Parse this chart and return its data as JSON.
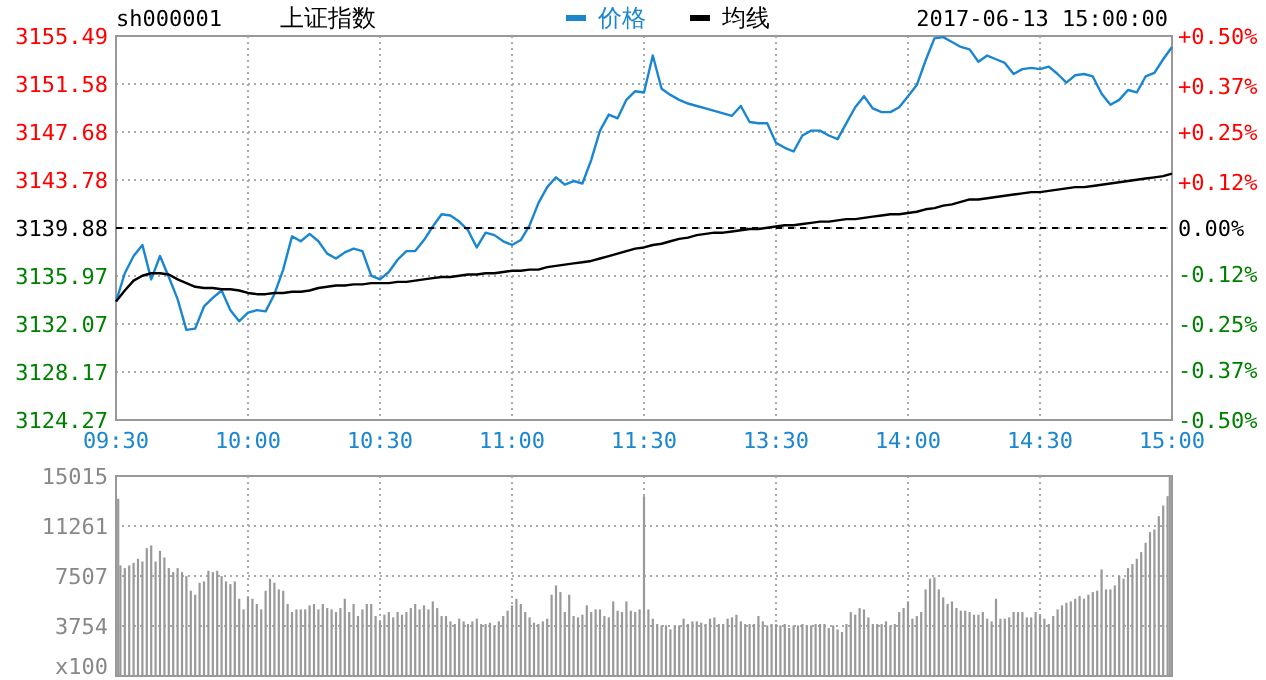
{
  "chart_data": [
    {
      "type": "line",
      "title": "上证指数",
      "subtitle": "sh000001",
      "annotations": [
        "2017-06-13 15:00:00"
      ],
      "legend": "top",
      "grid": true,
      "categories": [
        "09:30",
        null,
        null,
        null,
        null,
        null,
        null,
        null,
        null,
        null,
        null,
        null,
        null,
        null,
        null,
        "10:00",
        null,
        null,
        null,
        null,
        null,
        null,
        null,
        null,
        null,
        null,
        null,
        null,
        null,
        null,
        "10:30",
        null,
        null,
        null,
        null,
        null,
        null,
        null,
        null,
        null,
        null,
        null,
        null,
        null,
        null,
        "11:00",
        null,
        null,
        null,
        null,
        null,
        null,
        null,
        null,
        null,
        null,
        null,
        null,
        null,
        null,
        "11:30",
        null,
        null,
        null,
        null,
        null,
        null,
        null,
        null,
        null,
        null,
        null,
        null,
        null,
        null,
        "13:30",
        null,
        null,
        null,
        null,
        null,
        null,
        null,
        null,
        null,
        null,
        null,
        null,
        null,
        null,
        "14:00",
        null,
        null,
        null,
        null,
        null,
        null,
        null,
        null,
        null,
        null,
        null,
        null,
        null,
        null,
        "14:30",
        null,
        null,
        null,
        null,
        null,
        null,
        null,
        null,
        null,
        null,
        null,
        null,
        null,
        null,
        "15:00"
      ],
      "ylim": [
        3124.27,
        3155.49
      ],
      "yticks": [
        3124.27,
        3128.17,
        3132.07,
        3135.97,
        3139.88,
        3143.78,
        3147.68,
        3151.58,
        3155.49
      ],
      "y2lim": [
        -0.5,
        0.5
      ],
      "y2ticks": [
        {
          "value": -0.5,
          "label": "-0.50%"
        },
        {
          "value": -0.37,
          "label": "-0.37%"
        },
        {
          "value": -0.25,
          "label": "-0.25%"
        },
        {
          "value": -0.12,
          "label": "-0.12%"
        },
        {
          "value": 0,
          "label": "0.00%"
        },
        {
          "value": 0.12,
          "label": "+0.12%"
        },
        {
          "value": 0.25,
          "label": "+0.25%"
        },
        {
          "value": 0.37,
          "label": "+0.37%"
        },
        {
          "value": 0.5,
          "label": "+0.50%"
        }
      ],
      "ref_lines": [
        {
          "axis": "y",
          "value": 3139.88,
          "color": "#000000",
          "line_style": "dashed"
        }
      ],
      "series": [
        {
          "name": "价格",
          "color": "#1a86d0",
          "values": [
            3133.9,
            3136.2,
            3137.6,
            3138.5,
            3135.7,
            3137.6,
            3135.9,
            3134.1,
            3131.6,
            3131.7,
            3133.5,
            3134.2,
            3134.8,
            3133.2,
            3132.3,
            3133.0,
            3133.2,
            3133.1,
            3134.5,
            3136.5,
            3139.2,
            3138.8,
            3139.4,
            3138.8,
            3137.8,
            3137.4,
            3137.9,
            3138.2,
            3138.0,
            3136.0,
            3135.7,
            3136.3,
            3137.3,
            3138.0,
            3138.0,
            3138.9,
            3140.0,
            3141.0,
            3140.9,
            3140.4,
            3139.7,
            3138.3,
            3139.5,
            3139.3,
            3138.8,
            3138.5,
            3138.9,
            3140.1,
            3141.9,
            3143.2,
            3144.0,
            3143.4,
            3143.7,
            3143.5,
            3145.4,
            3147.8,
            3149.1,
            3148.8,
            3150.3,
            3151.0,
            3150.9,
            3153.9,
            3151.2,
            3150.7,
            3150.3,
            3150.0,
            3149.8,
            3149.6,
            3149.4,
            3149.2,
            3149.0,
            3149.8,
            3148.5,
            3148.4,
            3148.4,
            3146.8,
            3146.4,
            3146.1,
            3147.4,
            3147.8,
            3147.8,
            3147.4,
            3147.1,
            3148.4,
            3149.7,
            3150.6,
            3149.6,
            3149.3,
            3149.3,
            3149.7,
            3150.6,
            3151.5,
            3153.5,
            3155.3,
            3155.4,
            3155.0,
            3154.6,
            3154.4,
            3153.4,
            3153.9,
            3153.6,
            3153.3,
            3152.4,
            3152.8,
            3152.9,
            3152.8,
            3153.0,
            3152.4,
            3151.7,
            3152.3,
            3152.4,
            3152.2,
            3150.8,
            3149.9,
            3150.3,
            3151.1,
            3150.9,
            3152.2,
            3152.5,
            3153.6,
            3154.6
          ]
        },
        {
          "name": "均线",
          "color": "#000000",
          "values": [
            3133.9,
            3134.8,
            3135.6,
            3136.0,
            3136.2,
            3136.2,
            3136.1,
            3135.7,
            3135.4,
            3135.1,
            3135.0,
            3135.0,
            3134.9,
            3134.9,
            3134.8,
            3134.6,
            3134.5,
            3134.5,
            3134.6,
            3134.6,
            3134.7,
            3134.7,
            3134.8,
            3135.0,
            3135.1,
            3135.2,
            3135.2,
            3135.3,
            3135.3,
            3135.4,
            3135.4,
            3135.4,
            3135.5,
            3135.5,
            3135.6,
            3135.7,
            3135.8,
            3135.9,
            3135.9,
            3136.0,
            3136.1,
            3136.1,
            3136.2,
            3136.2,
            3136.3,
            3136.4,
            3136.4,
            3136.5,
            3136.5,
            3136.7,
            3136.8,
            3136.9,
            3137.0,
            3137.1,
            3137.2,
            3137.4,
            3137.6,
            3137.8,
            3138.0,
            3138.2,
            3138.3,
            3138.5,
            3138.6,
            3138.8,
            3139.0,
            3139.1,
            3139.3,
            3139.4,
            3139.5,
            3139.5,
            3139.6,
            3139.7,
            3139.8,
            3139.8,
            3139.9,
            3140.0,
            3140.1,
            3140.1,
            3140.2,
            3140.3,
            3140.4,
            3140.4,
            3140.5,
            3140.6,
            3140.6,
            3140.7,
            3140.8,
            3140.9,
            3141.0,
            3141.0,
            3141.1,
            3141.2,
            3141.4,
            3141.5,
            3141.7,
            3141.8,
            3142.0,
            3142.2,
            3142.2,
            3142.3,
            3142.4,
            3142.5,
            3142.6,
            3142.7,
            3142.8,
            3142.8,
            3142.9,
            3143.0,
            3143.1,
            3143.2,
            3143.2,
            3143.3,
            3143.4,
            3143.5,
            3143.6,
            3143.7,
            3143.8,
            3143.9,
            3144.0,
            3144.1,
            3144.3
          ]
        }
      ]
    },
    {
      "type": "bar",
      "grid": true,
      "tick_labels": "y",
      "color": "#999999",
      "categories": [
        null,
        null,
        null,
        null,
        null,
        null,
        null,
        null,
        null,
        null,
        null,
        null,
        null,
        null,
        null,
        null,
        null,
        null,
        null,
        null,
        null,
        null,
        null,
        null,
        null,
        null,
        null,
        null,
        null,
        null,
        null,
        null,
        null,
        null,
        null,
        null,
        null,
        null,
        null,
        null,
        null,
        null,
        null,
        null,
        null,
        null,
        null,
        null,
        null,
        null,
        null,
        null,
        null,
        null,
        null,
        null,
        null,
        null,
        null,
        null,
        null,
        null,
        null,
        null,
        null,
        null,
        null,
        null,
        null,
        null,
        null,
        null,
        null,
        null,
        null,
        null,
        null,
        null,
        null,
        null,
        null,
        null,
        null,
        null,
        null,
        null,
        null,
        null,
        null,
        null,
        null,
        null,
        null,
        null,
        null,
        null,
        null,
        null,
        null,
        null,
        null,
        null,
        null,
        null,
        null,
        null,
        null,
        null,
        null,
        null,
        null,
        null,
        null,
        null,
        null,
        null,
        null,
        null,
        null,
        null,
        null,
        null,
        null,
        null,
        null,
        null,
        null,
        null,
        null,
        null,
        null,
        null,
        null,
        null,
        null,
        null,
        null,
        null,
        null,
        null,
        null,
        null,
        null,
        null,
        null,
        null,
        null,
        null,
        null,
        null,
        null,
        null,
        null,
        null,
        null,
        null,
        null,
        null,
        null,
        null,
        null,
        null,
        null,
        null,
        null,
        null,
        null,
        null,
        null,
        null,
        null,
        null,
        null,
        null,
        null,
        null,
        null,
        null,
        null,
        null,
        null,
        null,
        null,
        null,
        null,
        null,
        null,
        null,
        null,
        null,
        null,
        null,
        null,
        null,
        null,
        null,
        null,
        null,
        null,
        null,
        null,
        null,
        null,
        null,
        null,
        null,
        null,
        null,
        null,
        null,
        null,
        null,
        null,
        null,
        null,
        null,
        null,
        null,
        null,
        null,
        null,
        null,
        null,
        null,
        null,
        null,
        null,
        null,
        null,
        null,
        null,
        null,
        null,
        null,
        null,
        null,
        null,
        null,
        null,
        null,
        null
      ],
      "ylim": [
        0,
        15015
      ],
      "yticks": [
        {
          "value": 0,
          "label": "x100"
        },
        3754,
        7507,
        11261,
        15015
      ],
      "values": [
        13300,
        8300,
        8100,
        8300,
        8500,
        8800,
        8600,
        9600,
        9800,
        8600,
        9400,
        8900,
        8100,
        7800,
        8100,
        7800,
        7500,
        6400,
        6100,
        7000,
        7100,
        7900,
        7800,
        7900,
        7500,
        7100,
        6900,
        7100,
        5800,
        5000,
        5900,
        5800,
        5400,
        5000,
        6400,
        7300,
        7000,
        6500,
        6400,
        5400,
        4800,
        5000,
        5000,
        5000,
        5300,
        5400,
        5000,
        5400,
        5100,
        5000,
        4800,
        5100,
        5800,
        4800,
        5400,
        4500,
        5000,
        5400,
        5400,
        4500,
        4100,
        4600,
        4800,
        4400,
        4800,
        4600,
        4800,
        5100,
        5400,
        5000,
        5300,
        5000,
        5600,
        5100,
        4500,
        4500,
        4100,
        3900,
        4300,
        4100,
        3900,
        4100,
        4300,
        3900,
        3900,
        4000,
        3800,
        4100,
        4500,
        4900,
        5300,
        5800,
        5400,
        4800,
        4400,
        4000,
        3900,
        4100,
        4300,
        6100,
        6800,
        6300,
        4800,
        6100,
        4500,
        4400,
        4600,
        5300,
        4800,
        5000,
        5000,
        4500,
        4400,
        5600,
        4900,
        4800,
        5600,
        4900,
        4800,
        5000,
        13500,
        5000,
        4300,
        3900,
        3800,
        3800,
        3500,
        3800,
        3800,
        4300,
        3900,
        4100,
        4100,
        4000,
        3900,
        4300,
        4400,
        3900,
        3900,
        4300,
        4400,
        4600,
        4100,
        3900,
        3900,
        3900,
        4500,
        4100,
        3800,
        3900,
        3900,
        3800,
        3900,
        3600,
        3800,
        3800,
        3900,
        3800,
        3800,
        3900,
        3900,
        3900,
        3600,
        3800,
        3500,
        3300,
        3900,
        4800,
        4600,
        5100,
        5000,
        4400,
        3900,
        3900,
        3900,
        4100,
        3800,
        3900,
        4800,
        5100,
        5600,
        4300,
        4500,
        4800,
        6500,
        7300,
        7400,
        6500,
        5900,
        5400,
        5600,
        5100,
        4900,
        4900,
        4800,
        4600,
        4600,
        4800,
        4300,
        4100,
        5800,
        4300,
        4300,
        4400,
        4800,
        4800,
        4800,
        4400,
        4400,
        4800,
        4600,
        4300,
        3900,
        4500,
        5000,
        5300,
        5500,
        5600,
        5800,
        6000,
        5800,
        6100,
        6300,
        6400,
        8000,
        6500,
        6500,
        6800,
        7500,
        7300,
        8100,
        8400,
        8800,
        9300,
        10000,
        10800,
        11000,
        12000,
        12800,
        13500,
        15000
      ]
    }
  ]
}
